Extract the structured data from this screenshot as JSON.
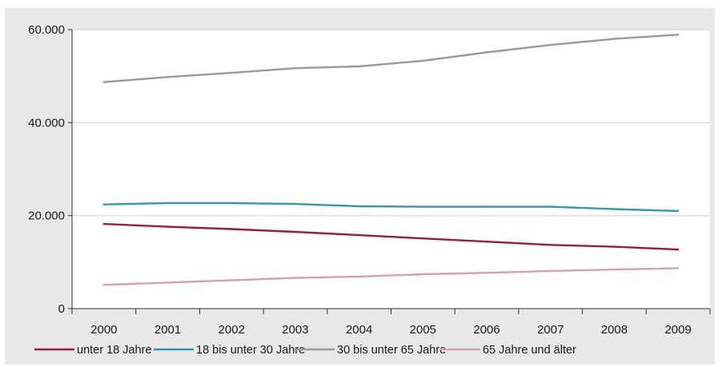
{
  "chart_data": {
    "type": "line",
    "title": "",
    "xlabel": "",
    "ylabel": "",
    "categories": [
      "2000",
      "2001",
      "2002",
      "2003",
      "2004",
      "2005",
      "2006",
      "2007",
      "2008",
      "2009"
    ],
    "ylim": [
      0,
      60000
    ],
    "yticks": [
      0,
      20000,
      40000,
      60000
    ],
    "ytick_labels": [
      "0",
      "20.000",
      "40.000",
      "60.000"
    ],
    "grid": "horizontal",
    "legend_position": "bottom",
    "series": [
      {
        "name": "unter 18 Jahre",
        "color": "#9b1a3f",
        "values": [
          18200,
          17600,
          17100,
          16500,
          15800,
          15100,
          14400,
          13700,
          13300,
          12700
        ]
      },
      {
        "name": "18 bis unter 30 Jahre",
        "color": "#3399aa",
        "values": [
          22400,
          22700,
          22700,
          22500,
          22000,
          21900,
          21900,
          21900,
          21400,
          21000
        ]
      },
      {
        "name": "30 bis unter 65 Jahre",
        "color": "#999999",
        "values": [
          48700,
          49800,
          50700,
          51700,
          52100,
          53300,
          55100,
          56700,
          58000,
          58900
        ]
      },
      {
        "name": "65 Jahre und älter",
        "color": "#d49fb3",
        "values": [
          5100,
          5600,
          6100,
          6600,
          6900,
          7400,
          7700,
          8100,
          8400,
          8700
        ]
      }
    ]
  }
}
